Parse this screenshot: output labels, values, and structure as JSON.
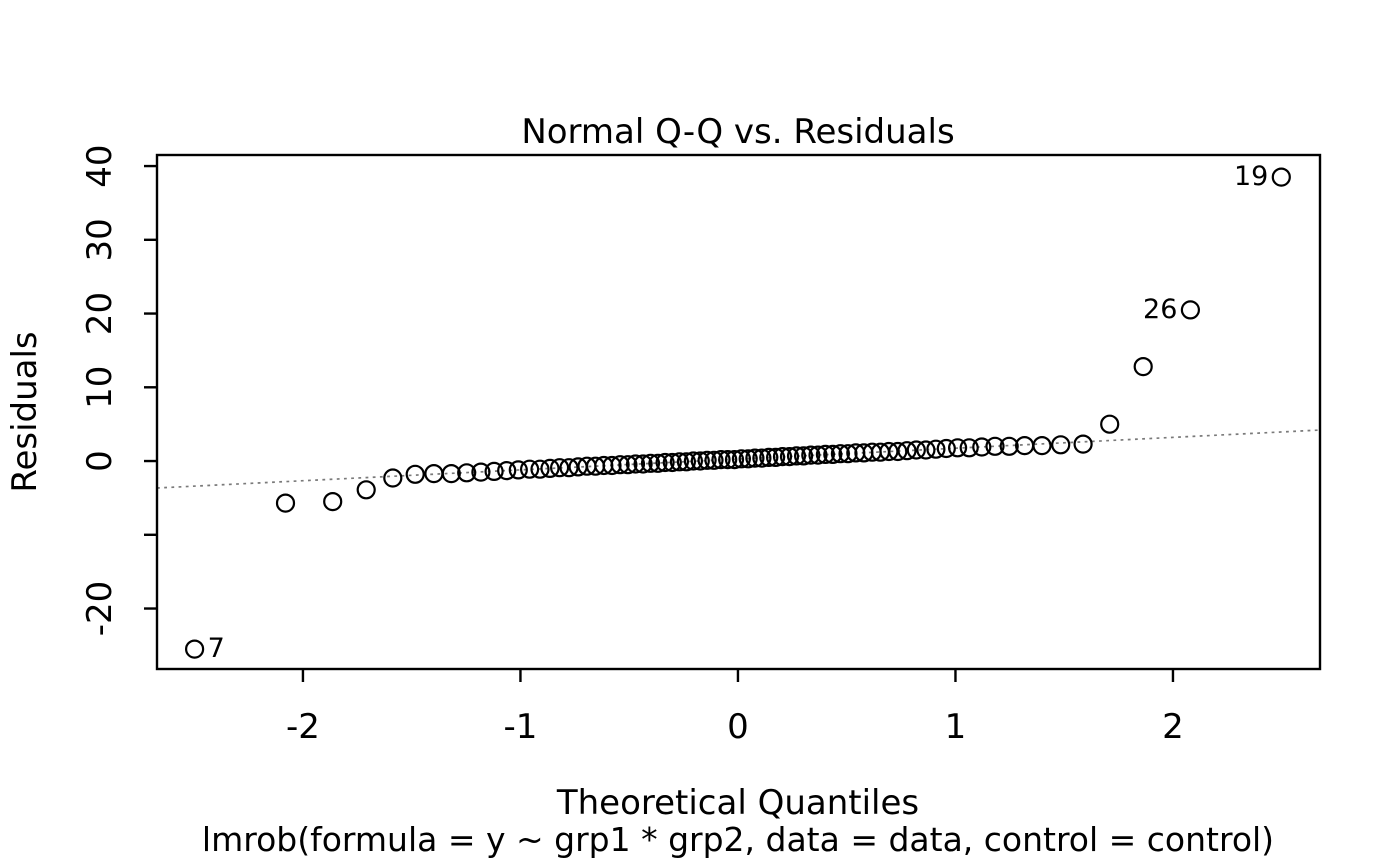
{
  "chart_data": {
    "type": "scatter",
    "title": "Normal Q-Q vs. Residuals",
    "xlabel": "Theoretical Quantiles",
    "ylabel": "Residuals",
    "subtitle": "lmrob(formula = y ~ grp1 * grp2, data = data, control = control)",
    "xlim": [
      -2.671,
      2.676
    ],
    "ylim": [
      -28.2,
      41.5
    ],
    "x_ticks": [
      {
        "value": -2,
        "label": "-2"
      },
      {
        "value": -1,
        "label": "-1"
      },
      {
        "value": 0,
        "label": "0"
      },
      {
        "value": 1,
        "label": "1"
      },
      {
        "value": 2,
        "label": "2"
      }
    ],
    "y_ticks": [
      {
        "value": 40,
        "label": "40"
      },
      {
        "value": 30,
        "label": "30"
      },
      {
        "value": 20,
        "label": "20"
      },
      {
        "value": 10,
        "label": "10"
      },
      {
        "value": 0,
        "label": "0"
      },
      {
        "value": -10,
        "label": ""
      },
      {
        "value": -20,
        "label": "-20"
      }
    ],
    "grid": false,
    "legend": false,
    "point_style": "open-circle",
    "point_color": "#000000",
    "reference_line": {
      "style": "dotted",
      "slope": 1.47,
      "intercept": 0.27,
      "color": "#7a7a7a"
    },
    "points": [
      [
        -2.498,
        -25.5
      ],
      [
        -2.08,
        -5.7
      ],
      [
        -1.863,
        -5.5
      ],
      [
        -1.709,
        -3.9
      ],
      [
        -1.587,
        -2.3
      ],
      [
        -1.484,
        -1.8
      ],
      [
        -1.398,
        -1.7
      ],
      [
        -1.318,
        -1.7
      ],
      [
        -1.247,
        -1.6
      ],
      [
        -1.182,
        -1.5
      ],
      [
        -1.121,
        -1.4
      ],
      [
        -1.063,
        -1.3
      ],
      [
        -1.01,
        -1.2
      ],
      [
        -0.958,
        -1.1
      ],
      [
        -0.91,
        -1.1
      ],
      [
        -0.864,
        -1.0
      ],
      [
        -0.82,
        -0.9
      ],
      [
        -0.777,
        -0.9
      ],
      [
        -0.735,
        -0.8
      ],
      [
        -0.694,
        -0.7
      ],
      [
        -0.655,
        -0.7
      ],
      [
        -0.617,
        -0.6
      ],
      [
        -0.579,
        -0.6
      ],
      [
        -0.542,
        -0.5
      ],
      [
        -0.506,
        -0.5
      ],
      [
        -0.471,
        -0.4
      ],
      [
        -0.436,
        -0.4
      ],
      [
        -0.402,
        -0.3
      ],
      [
        -0.368,
        -0.3
      ],
      [
        -0.335,
        -0.2
      ],
      [
        -0.302,
        -0.2
      ],
      [
        -0.269,
        -0.1
      ],
      [
        -0.237,
        -0.1
      ],
      [
        -0.205,
        0.0
      ],
      [
        -0.173,
        0.0
      ],
      [
        -0.142,
        0.1
      ],
      [
        -0.11,
        0.1
      ],
      [
        -0.078,
        0.2
      ],
      [
        -0.047,
        0.2
      ],
      [
        -0.016,
        0.2
      ],
      [
        0.016,
        0.3
      ],
      [
        0.047,
        0.3
      ],
      [
        0.078,
        0.4
      ],
      [
        0.11,
        0.4
      ],
      [
        0.142,
        0.5
      ],
      [
        0.173,
        0.5
      ],
      [
        0.205,
        0.6
      ],
      [
        0.237,
        0.6
      ],
      [
        0.269,
        0.7
      ],
      [
        0.302,
        0.7
      ],
      [
        0.335,
        0.8
      ],
      [
        0.368,
        0.8
      ],
      [
        0.402,
        0.9
      ],
      [
        0.436,
        0.9
      ],
      [
        0.471,
        1.0
      ],
      [
        0.506,
        1.0
      ],
      [
        0.542,
        1.1
      ],
      [
        0.579,
        1.1
      ],
      [
        0.617,
        1.2
      ],
      [
        0.655,
        1.2
      ],
      [
        0.694,
        1.3
      ],
      [
        0.735,
        1.3
      ],
      [
        0.777,
        1.4
      ],
      [
        0.82,
        1.5
      ],
      [
        0.864,
        1.5
      ],
      [
        0.91,
        1.6
      ],
      [
        0.958,
        1.7
      ],
      [
        1.01,
        1.8
      ],
      [
        1.063,
        1.8
      ],
      [
        1.121,
        1.9
      ],
      [
        1.182,
        2.0
      ],
      [
        1.247,
        2.0
      ],
      [
        1.318,
        2.1
      ],
      [
        1.398,
        2.1
      ],
      [
        1.484,
        2.2
      ],
      [
        1.587,
        2.3
      ],
      [
        1.709,
        5.0
      ],
      [
        1.863,
        12.8
      ],
      [
        2.08,
        20.5
      ],
      [
        2.498,
        38.5
      ]
    ],
    "labeled_points": [
      {
        "point_index": 0,
        "label": "7",
        "side": "right"
      },
      {
        "point_index": 78,
        "label": "26",
        "side": "left"
      },
      {
        "point_index": 79,
        "label": "19",
        "side": "left"
      }
    ]
  }
}
